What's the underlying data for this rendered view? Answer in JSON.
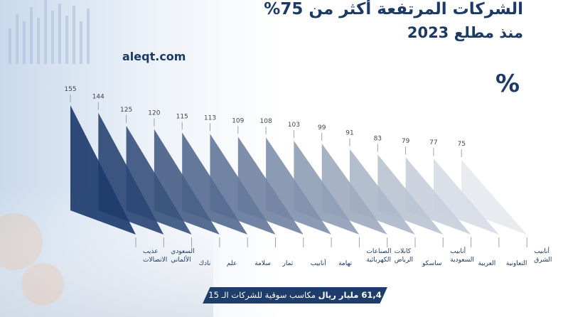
{
  "header": {
    "title": "الشركات المرتفعة أكثر من 75%",
    "subtitle": "منذ مطلع 2023",
    "site": "aleqt.com",
    "unit_symbol": "%"
  },
  "footer": {
    "highlight": "61,4 مليار ريال",
    "text": " مكاسب سوقية للشركات الـ 15"
  },
  "colors": {
    "accent": "#1c3a66",
    "bar_dark": "#1e3c6c",
    "bar_light": "#e6e9ef"
  },
  "chart_data": {
    "type": "bar",
    "title": "الشركات المرتفعة أكثر من 75%",
    "ylabel": "%",
    "categories": [
      [
        "عذيب",
        "الاتصالات"
      ],
      [
        "السعودي",
        "الألماني"
      ],
      [
        "نادك"
      ],
      [
        "علم"
      ],
      [
        "سلامة"
      ],
      [
        "ثمار"
      ],
      [
        "أنابيب"
      ],
      [
        "تهامة"
      ],
      [
        "الصناعات",
        "الكهربائية"
      ],
      [
        "كابلات",
        "الرياض"
      ],
      [
        "ساسكو"
      ],
      [
        "أنابيب",
        "السعودية"
      ],
      [
        "العربية"
      ],
      [
        "التعاونية"
      ],
      [
        "أنابيب",
        "الشرق"
      ]
    ],
    "values": [
      155,
      144,
      125,
      120,
      115,
      113,
      109,
      108,
      103,
      99,
      91,
      83,
      79,
      77,
      75
    ]
  }
}
